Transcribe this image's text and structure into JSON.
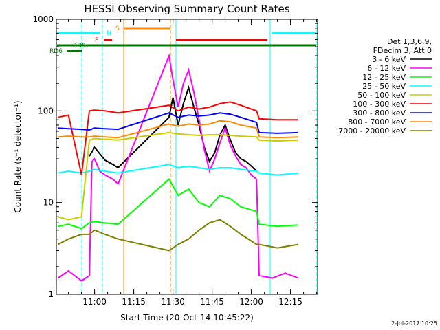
{
  "chart_data": {
    "type": "line",
    "title": "HESSI Observing Summary Count Rates",
    "xlabel": "Start Time (20-Oct-14 10:45:22)",
    "ylabel": "Count Rate (s⁻¹ detector⁻¹)",
    "x_ticks": [
      "11:00",
      "11:15",
      "11:30",
      "11:45",
      "12:00",
      "12:15"
    ],
    "y_ticks": [
      "1",
      "10",
      "100",
      "1000"
    ],
    "xlim": [
      "10:45:22",
      "12:25:22"
    ],
    "ylim": [
      1,
      1000
    ],
    "yscale": "log",
    "grid": false,
    "legend_position": "right",
    "legend_header": [
      "Det 1,3,6,9,",
      "FDecim 3, Att 0"
    ],
    "series": [
      {
        "name": "3 - 6 keV",
        "color": "#000000",
        "x": [
          "10:58",
          "11:00",
          "11:02",
          "11:04",
          "11:07",
          "11:09",
          "11:28:30",
          "11:30",
          "11:32",
          "11:34",
          "11:36",
          "11:38",
          "11:40",
          "11:42",
          "11:44",
          "11:46",
          "11:48",
          "11:50",
          "11:52",
          "11:54",
          "11:56",
          "11:58",
          "12:00",
          "12:02"
        ],
        "y": [
          32,
          40,
          34,
          29,
          26,
          24,
          85,
          140,
          70,
          120,
          180,
          110,
          70,
          40,
          28,
          35,
          55,
          70,
          48,
          35,
          30,
          28,
          25,
          22
        ]
      },
      {
        "name": "6 - 12 keV",
        "color": "#ff00ff",
        "x": [
          "10:46",
          "10:50",
          "10:55",
          "10:58",
          "10:59",
          "11:00",
          "11:02",
          "11:04",
          "11:07",
          "11:09",
          "11:28:30",
          "11:30",
          "11:32",
          "11:34",
          "11:36",
          "11:38",
          "11:40",
          "11:42",
          "11:44",
          "11:46",
          "11:48",
          "11:50",
          "11:52",
          "11:54",
          "11:56",
          "11:58",
          "12:00",
          "12:02",
          "12:03",
          "12:08",
          "12:13",
          "12:18"
        ],
        "y": [
          1.5,
          1.8,
          1.4,
          1.6,
          28,
          30,
          22,
          20,
          18,
          16,
          400,
          220,
          110,
          200,
          280,
          160,
          80,
          38,
          22,
          30,
          45,
          65,
          42,
          32,
          26,
          24,
          20,
          18,
          1.6,
          1.5,
          1.7,
          1.5
        ]
      },
      {
        "name": "12 - 25 keV",
        "color": "#00ff00",
        "x": [
          "10:46",
          "10:50",
          "10:55",
          "10:58",
          "11:00",
          "11:04",
          "11:09",
          "11:28:30",
          "11:32",
          "11:36",
          "11:40",
          "11:44",
          "11:48",
          "11:52",
          "11:56",
          "12:02",
          "12:03",
          "12:10",
          "12:18"
        ],
        "y": [
          5.5,
          5.8,
          5.2,
          6,
          6.2,
          6,
          5.8,
          18,
          12,
          14,
          10,
          9,
          12,
          11,
          9,
          8,
          5.8,
          5.5,
          5.7
        ]
      },
      {
        "name": "25 - 50 keV",
        "color": "#00ffff",
        "x": [
          "10:46",
          "10:50",
          "10:55",
          "10:58",
          "11:00",
          "11:04",
          "11:09",
          "11:28:30",
          "11:32",
          "11:36",
          "11:40",
          "11:44",
          "11:48",
          "11:52",
          "11:56",
          "12:02",
          "12:03",
          "12:10",
          "12:18"
        ],
        "y": [
          21,
          22,
          21,
          22,
          23,
          22,
          21,
          26,
          24,
          25,
          24,
          23,
          24,
          24,
          23,
          22,
          21,
          20,
          21
        ]
      },
      {
        "name": "50 - 100 keV",
        "color": "#cccc00",
        "x": [
          "10:46",
          "10:50",
          "10:55",
          "10:58",
          "11:00",
          "11:04",
          "11:09",
          "11:28:30",
          "11:32",
          "11:36",
          "11:40",
          "11:44",
          "11:48",
          "11:52",
          "11:56",
          "12:02",
          "12:03",
          "12:10",
          "12:18"
        ],
        "y": [
          7,
          6.5,
          7,
          48,
          50,
          49,
          48,
          58,
          56,
          55,
          54,
          55,
          55,
          54,
          53,
          52,
          48,
          47,
          48
        ]
      },
      {
        "name": "100 - 300 keV",
        "color": "#ff0000",
        "x": [
          "10:46",
          "10:50",
          "10:55",
          "10:58",
          "11:00",
          "11:04",
          "11:09",
          "11:28:30",
          "11:32",
          "11:36",
          "11:40",
          "11:44",
          "11:48",
          "11:52",
          "11:56",
          "12:02",
          "12:03",
          "12:10",
          "12:18"
        ],
        "y": [
          85,
          90,
          20,
          100,
          102,
          100,
          95,
          115,
          100,
          110,
          105,
          110,
          120,
          125,
          115,
          100,
          82,
          80,
          80
        ]
      },
      {
        "name": "300 - 800 keV",
        "color": "#0000ff",
        "x": [
          "10:46",
          "10:50",
          "10:55",
          "10:58",
          "11:00",
          "11:04",
          "11:09",
          "11:28:30",
          "11:32",
          "11:36",
          "11:40",
          "11:44",
          "11:48",
          "11:52",
          "11:56",
          "12:02",
          "12:03",
          "12:10",
          "12:18"
        ],
        "y": [
          65,
          64,
          63,
          62,
          65,
          64,
          63,
          95,
          85,
          90,
          88,
          90,
          95,
          92,
          85,
          75,
          58,
          57,
          58
        ]
      },
      {
        "name": "800 - 7000 keV",
        "color": "#ff8800",
        "x": [
          "10:46",
          "10:50",
          "10:55",
          "10:58",
          "11:00",
          "11:04",
          "11:09",
          "11:28:30",
          "11:32",
          "11:36",
          "11:40",
          "11:44",
          "11:48",
          "11:52",
          "11:56",
          "12:02",
          "12:03",
          "12:10",
          "12:18"
        ],
        "y": [
          52,
          53,
          52,
          52,
          53,
          52,
          51,
          72,
          68,
          72,
          70,
          72,
          78,
          76,
          70,
          65,
          52,
          51,
          52
        ]
      },
      {
        "name": "7000 - 20000 keV",
        "color": "#808000",
        "x": [
          "10:46",
          "10:50",
          "10:55",
          "10:58",
          "11:00",
          "11:04",
          "11:09",
          "11:28:30",
          "11:32",
          "11:36",
          "11:40",
          "11:44",
          "11:48",
          "11:52",
          "11:56",
          "12:02",
          "12:03",
          "12:10",
          "12:18"
        ],
        "y": [
          3.5,
          4,
          4.5,
          4.5,
          5,
          4.5,
          4,
          3,
          3.5,
          4,
          5,
          6,
          6.5,
          5.5,
          4.5,
          3.5,
          3.5,
          3.2,
          3.5
        ]
      }
    ],
    "flag_bars": [
      {
        "label": "N",
        "color": "#00ffff"
      },
      {
        "label": "F",
        "color": "#ff0000"
      },
      {
        "label": "S",
        "color": "#ff8800"
      },
      {
        "label": "RD9",
        "color": "#007700"
      },
      {
        "label": "RD6",
        "color": "#007700"
      }
    ],
    "footer_date": "2-Jul-2017 10:25"
  }
}
